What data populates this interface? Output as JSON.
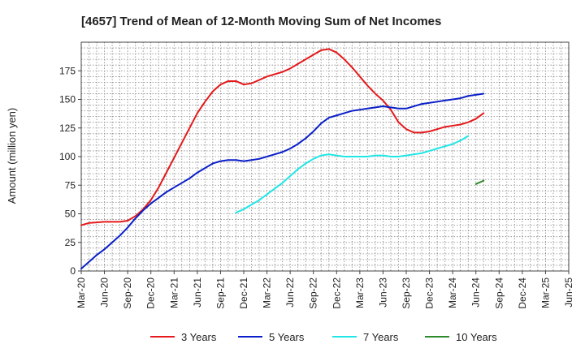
{
  "chart_data": {
    "type": "line",
    "title": "[4657]  Trend of Mean of 12-Month Moving Sum of Net Incomes",
    "ylabel": "Amount (million yen)",
    "ylim": [
      0,
      200
    ],
    "yticks": [
      0,
      25,
      50,
      75,
      100,
      125,
      150,
      175
    ],
    "xticks": [
      "Mar-20",
      "Jun-20",
      "Sep-20",
      "Dec-20",
      "Mar-21",
      "Jun-21",
      "Sep-21",
      "Dec-21",
      "Mar-22",
      "Jun-22",
      "Sep-22",
      "Dec-22",
      "Mar-23",
      "Jun-23",
      "Sep-23",
      "Dec-23",
      "Mar-24",
      "Jun-24",
      "Sep-24",
      "Dec-24",
      "Mar-25",
      "Jun-25"
    ],
    "grid": true,
    "legend_position": "bottom",
    "series": [
      {
        "name": "3 Years",
        "color": "#e41a1c",
        "start": 0,
        "values": [
          40,
          42,
          42.5,
          43,
          43,
          43,
          44,
          48,
          54,
          62,
          73,
          86,
          99,
          112,
          125,
          138,
          148,
          157,
          163,
          166,
          166,
          163,
          164,
          167,
          170,
          172,
          174,
          177,
          181,
          185,
          189,
          193,
          194,
          191,
          185,
          178,
          170,
          162,
          155,
          149,
          141,
          130,
          124,
          121,
          121,
          122,
          124,
          126,
          127,
          128,
          130,
          133,
          138
        ]
      },
      {
        "name": "5 Years",
        "color": "#0a1fc9",
        "start": 0,
        "values": [
          2,
          8,
          14,
          19,
          25,
          31,
          38,
          46,
          53,
          59,
          64,
          69,
          73,
          77,
          81,
          86,
          90,
          94,
          96,
          97,
          97,
          96,
          97,
          98,
          100,
          102,
          104,
          107,
          111,
          116,
          122,
          129,
          134,
          136,
          138,
          140,
          141,
          142,
          143,
          144,
          143,
          142,
          142,
          144,
          146,
          147,
          148,
          149,
          150,
          151,
          153,
          154,
          155
        ]
      },
      {
        "name": "7 Years",
        "color": "#22e6e6",
        "start": 20,
        "values": [
          51,
          54,
          58,
          62,
          67,
          72,
          77,
          83,
          89,
          94,
          98,
          101,
          102,
          101,
          100,
          100,
          100,
          100,
          101,
          101,
          100,
          100,
          101,
          102,
          103,
          105,
          107,
          109,
          111,
          114,
          118
        ]
      },
      {
        "name": "10 Years",
        "color": "#2e8b2e",
        "start": 51,
        "values": [
          76,
          79
        ]
      }
    ]
  }
}
